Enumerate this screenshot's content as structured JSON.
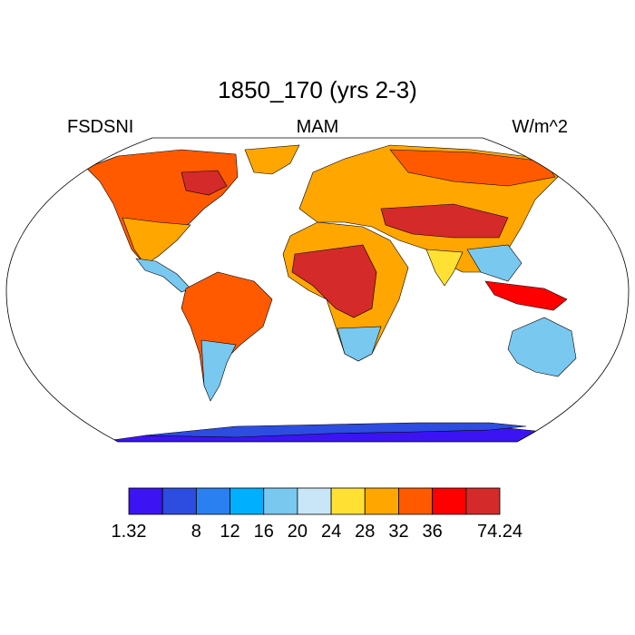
{
  "title": "1850_170 (yrs 2-3)",
  "left_label": "FSDSNI",
  "center_label": "MAM",
  "right_label": "W/m^2",
  "colorbar": {
    "levels": [
      1.32,
      null,
      8,
      12,
      16,
      20,
      24,
      28,
      32,
      36,
      null,
      74.24
    ],
    "colors": [
      "#3c14f4",
      "#2d4ce0",
      "#2a80f0",
      "#00b0ff",
      "#78c8f0",
      "#c8e6f8",
      "#ffe033",
      "#ffa600",
      "#ff5a00",
      "#ff0000",
      "#d42a2a"
    ]
  }
}
